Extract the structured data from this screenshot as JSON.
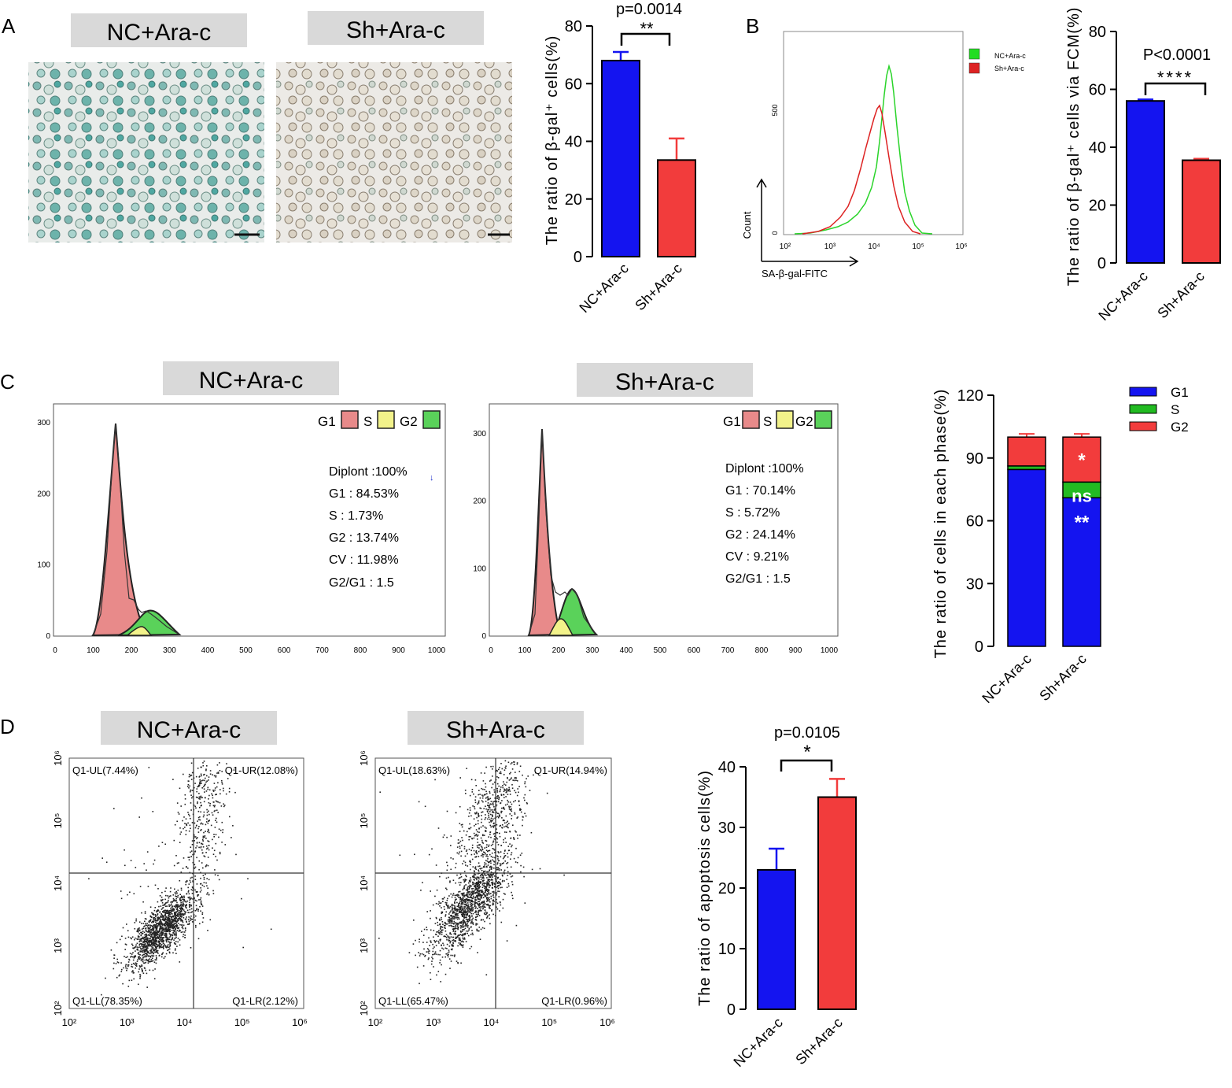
{
  "panels": {
    "A": "A",
    "B": "B",
    "C": "C",
    "D": "D"
  },
  "groups": {
    "nc": "NC+Ara-c",
    "sh": "Sh+Ara-c"
  },
  "colors": {
    "blue": "#1414f0",
    "red": "#f23c3c",
    "green": "#22bb22",
    "hist_red": "#e88a8a",
    "hist_green": "#5ad25a",
    "hist_yellow": "#f2f28a",
    "label_box": "#d9d9d9"
  },
  "chart_data": [
    {
      "id": "A_bar",
      "type": "bar",
      "categories": [
        "NC+Ara-c",
        "Sh+Ara-c"
      ],
      "values": [
        68,
        33.5
      ],
      "errors": [
        3,
        7.5
      ],
      "ylabel": "The ratio of β-gal⁺ cells(%)",
      "ylim": [
        0,
        80
      ],
      "yticks": [
        0,
        20,
        40,
        60,
        80
      ],
      "annotation": {
        "p": "p=0.0014",
        "stars": "**"
      }
    },
    {
      "id": "B_hist",
      "type": "line",
      "title": "",
      "xlabel": "SA-β-gal-FITC",
      "ylabel": "Count",
      "xticks": [
        "10²",
        "10³",
        "10⁴",
        "10⁵",
        "10⁶"
      ],
      "yticks": [
        "0",
        "500"
      ],
      "legend": [
        "NC+Ara-c",
        "Sh+Ara-c"
      ]
    },
    {
      "id": "B_bar",
      "type": "bar",
      "categories": [
        "NC+Ara-c",
        "Sh+Ara-c"
      ],
      "values": [
        56,
        35.5
      ],
      "errors": [
        0.5,
        0.5
      ],
      "ylabel": "The ratio of β-gal⁺ cells via FCM(%)",
      "ylim": [
        0,
        80
      ],
      "yticks": [
        0,
        20,
        40,
        60,
        80
      ],
      "annotation": {
        "p": "P<0.0001",
        "stars": "****"
      }
    },
    {
      "id": "C_hist_nc",
      "type": "area",
      "xticks": [
        "0",
        "100",
        "200",
        "300",
        "400",
        "500",
        "600",
        "700",
        "800",
        "900",
        "1000"
      ],
      "yticks": [
        "0",
        "100",
        "200",
        "300"
      ],
      "legend": [
        "G1",
        "S",
        "G2"
      ],
      "stats": [
        "Diplont :100%",
        "G1 : 84.53%",
        "S : 1.73%",
        "G2 : 13.74%",
        "CV : 11.98%",
        "G2/G1 : 1.5"
      ]
    },
    {
      "id": "C_hist_sh",
      "type": "area",
      "xticks": [
        "0",
        "100",
        "200",
        "300",
        "400",
        "500",
        "600",
        "700",
        "800",
        "900",
        "1000"
      ],
      "yticks": [
        "0",
        "100",
        "200",
        "300"
      ],
      "legend": [
        "G1",
        "S",
        "G2"
      ],
      "stats": [
        "Diplont :100%",
        "G1 : 70.14%",
        "S : 5.72%",
        "G2 : 24.14%",
        "CV : 9.21%",
        "G2/G1 : 1.5"
      ]
    },
    {
      "id": "C_stack",
      "type": "bar",
      "categories": [
        "NC+Ara-c",
        "Sh+Ara-c"
      ],
      "series": [
        {
          "name": "G1",
          "values": [
            84.5,
            71
          ]
        },
        {
          "name": "S",
          "values": [
            1.7,
            7.5
          ]
        },
        {
          "name": "G2",
          "values": [
            13.8,
            21.5
          ]
        }
      ],
      "ylabel": "The ratio of cells in each phase(%)",
      "ylim": [
        0,
        120
      ],
      "yticks": [
        0,
        30,
        60,
        90,
        120
      ],
      "marks": {
        "g2": "*",
        "s": "ns",
        "g1": "**"
      }
    },
    {
      "id": "D_scatter_nc",
      "type": "scatter",
      "xticks": [
        "10²",
        "10³",
        "10⁴",
        "10⁵",
        "10⁶"
      ],
      "yticks": [
        "10²",
        "10³",
        "10⁴",
        "10⁵",
        "10⁶"
      ],
      "quadrants": [
        "Q1-UL(7.44%)",
        "Q1-UR(12.08%)",
        "Q1-LL(78.35%)",
        "Q1-LR(2.12%)"
      ]
    },
    {
      "id": "D_scatter_sh",
      "type": "scatter",
      "xticks": [
        "10²",
        "10³",
        "10⁴",
        "10⁵",
        "10⁶"
      ],
      "yticks": [
        "10²",
        "10³",
        "10⁴",
        "10⁵",
        "10⁶"
      ],
      "quadrants": [
        "Q1-UL(18.63%)",
        "Q1-UR(14.94%)",
        "Q1-LL(65.47%)",
        "Q1-LR(0.96%)"
      ]
    },
    {
      "id": "D_bar",
      "type": "bar",
      "categories": [
        "NC+Ara-c",
        "Sh+Ara-c"
      ],
      "values": [
        23,
        35
      ],
      "errors": [
        3.5,
        3
      ],
      "ylabel": "The ratio of apoptosis cells(%)",
      "ylim": [
        0,
        40
      ],
      "yticks": [
        0,
        10,
        20,
        30,
        40
      ],
      "annotation": {
        "p": "p=0.0105",
        "stars": "*"
      }
    }
  ]
}
